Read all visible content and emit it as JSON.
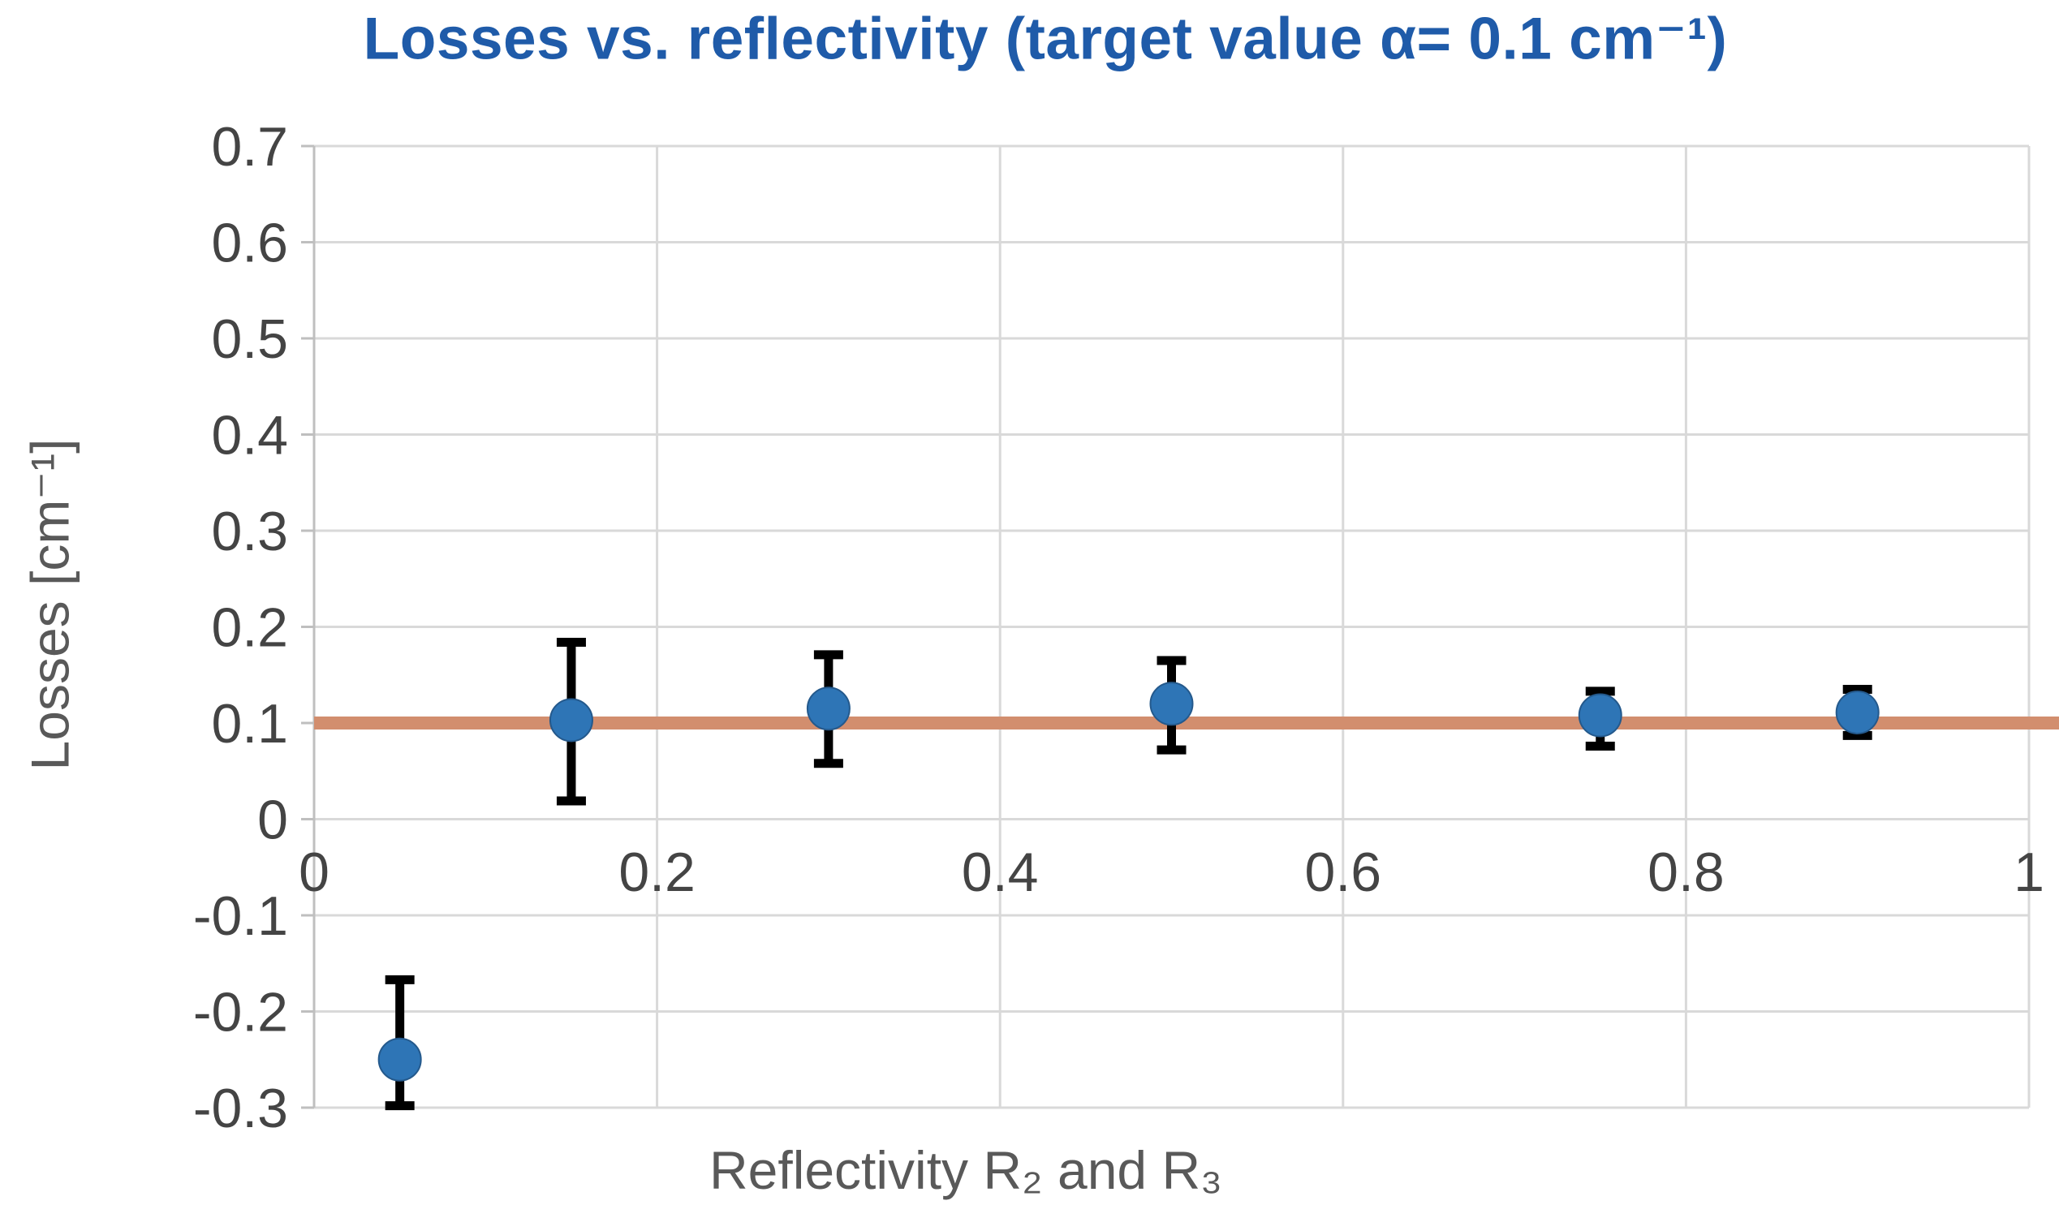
{
  "page": {
    "background": "#FFFFFF"
  },
  "chart_data": {
    "type": "scatter",
    "title": "Losses vs. reflectivity (target value α= 0.1 cm⁻¹)",
    "xlabel": "Reflectivity R₂ and R₃",
    "ylabel": "Losses [cm⁻¹]",
    "xlim": [
      0,
      1
    ],
    "ylim": [
      -0.3,
      0.7
    ],
    "x_ticks": [
      0,
      0.2,
      0.4,
      0.6,
      0.8,
      1
    ],
    "x_tick_labels": [
      "0",
      "0.2",
      "0.4",
      "0.6",
      "0.8",
      "1"
    ],
    "y_ticks": [
      0.7,
      0.6,
      0.5,
      0.4,
      0.3,
      0.2,
      0.1,
      0,
      -0.1,
      -0.2,
      -0.3
    ],
    "y_tick_labels": [
      "0.7",
      "0.6",
      "0.5",
      "0.4",
      "0.3",
      "0.2",
      "0.1",
      "0",
      "-0.1",
      "-0.2",
      "-0.3"
    ],
    "grid": true,
    "legend": "none",
    "target_line": {
      "y": 0.1
    },
    "series": [
      {
        "name": "Losses",
        "points": [
          {
            "x": 0.05,
            "y": -0.25,
            "err_up": 0.083,
            "err_down": 0.048
          },
          {
            "x": 0.15,
            "y": 0.103,
            "err_up": 0.081,
            "err_down": 0.084
          },
          {
            "x": 0.3,
            "y": 0.115,
            "err_up": 0.056,
            "err_down": 0.057
          },
          {
            "x": 0.5,
            "y": 0.12,
            "err_up": 0.045,
            "err_down": 0.048
          },
          {
            "x": 0.75,
            "y": 0.108,
            "err_up": 0.025,
            "err_down": 0.032
          },
          {
            "x": 0.9,
            "y": 0.111,
            "err_up": 0.024,
            "err_down": 0.024
          }
        ]
      }
    ]
  },
  "colors": {
    "title": "#1F5BA9",
    "axis_title": "#595959",
    "tick_label": "#444444",
    "gridline": "#D9D9D9",
    "axis_line": "#BFBFBF",
    "marker": "#2E75B6",
    "error_bar": "#000000",
    "target_line": "#D28E6E"
  }
}
